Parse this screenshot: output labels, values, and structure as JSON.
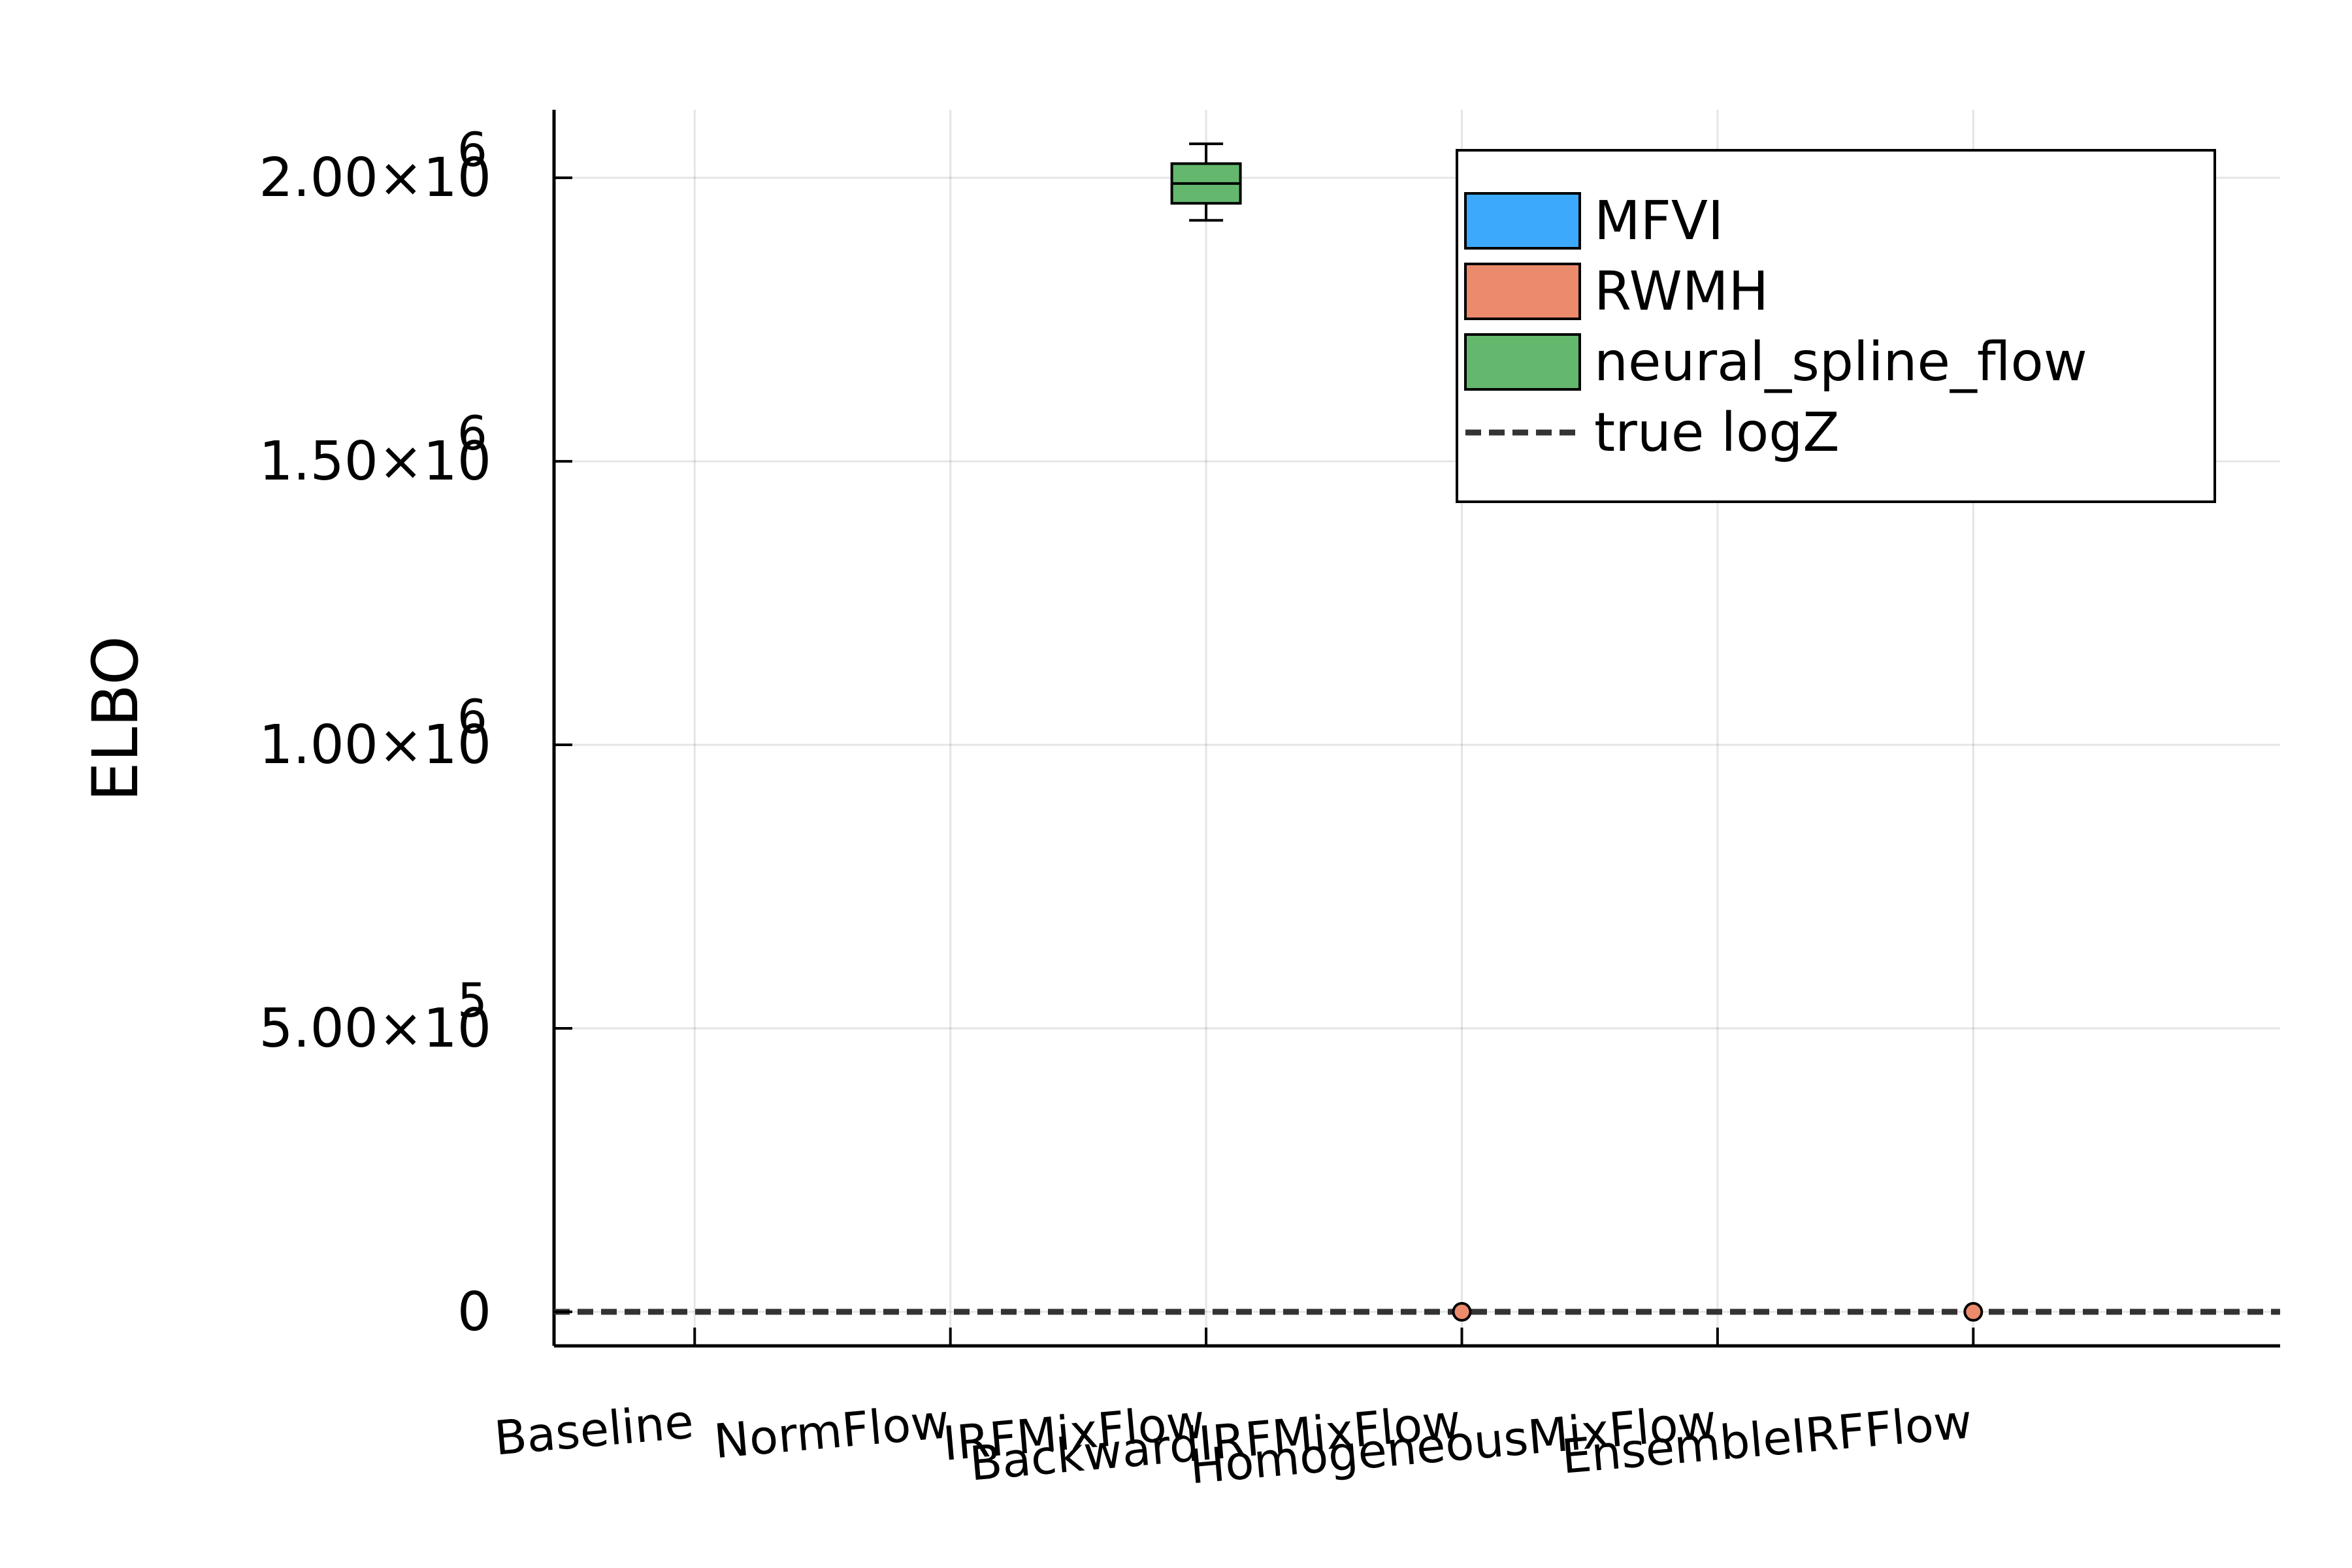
{
  "chart_data": {
    "type": "box",
    "ylabel": "ELBO",
    "ylim": [
      -60000,
      2120000
    ],
    "categories": [
      "Baseline",
      "NormFlow",
      "IRFMixFlow",
      "BackwardIRFMixFlow",
      "HomogeneousMixFlow",
      "EnsembleIRFFlow"
    ],
    "y_ticks": [
      {
        "value": 0,
        "mantissa": "0",
        "exponent": ""
      },
      {
        "value": 500000,
        "mantissa": "5.00×10",
        "exponent": "5"
      },
      {
        "value": 1000000,
        "mantissa": "1.00×10",
        "exponent": "6"
      },
      {
        "value": 1500000,
        "mantissa": "1.50×10",
        "exponent": "6"
      },
      {
        "value": 2000000,
        "mantissa": "2.00×10",
        "exponent": "6"
      }
    ],
    "grid": true,
    "legend_position": "top-right",
    "series": [
      {
        "name": "MFVI",
        "color": "#3da9fc",
        "boxes": []
      },
      {
        "name": "RWMH",
        "color": "#ec8b6c",
        "boxes": [],
        "outliers": [
          {
            "category": 4,
            "y": 0
          },
          {
            "category": 6,
            "y": 0
          }
        ]
      },
      {
        "name": "neural_spline_flow",
        "color": "#63b86d",
        "boxes": [
          {
            "category": 3,
            "min": 1925000,
            "q1": 1955000,
            "median": 1990000,
            "q3": 2025000,
            "max": 2060000
          }
        ]
      }
    ],
    "reference_line": {
      "name": "true logZ",
      "y": 0,
      "style": "dashed",
      "color": "#333333"
    }
  }
}
